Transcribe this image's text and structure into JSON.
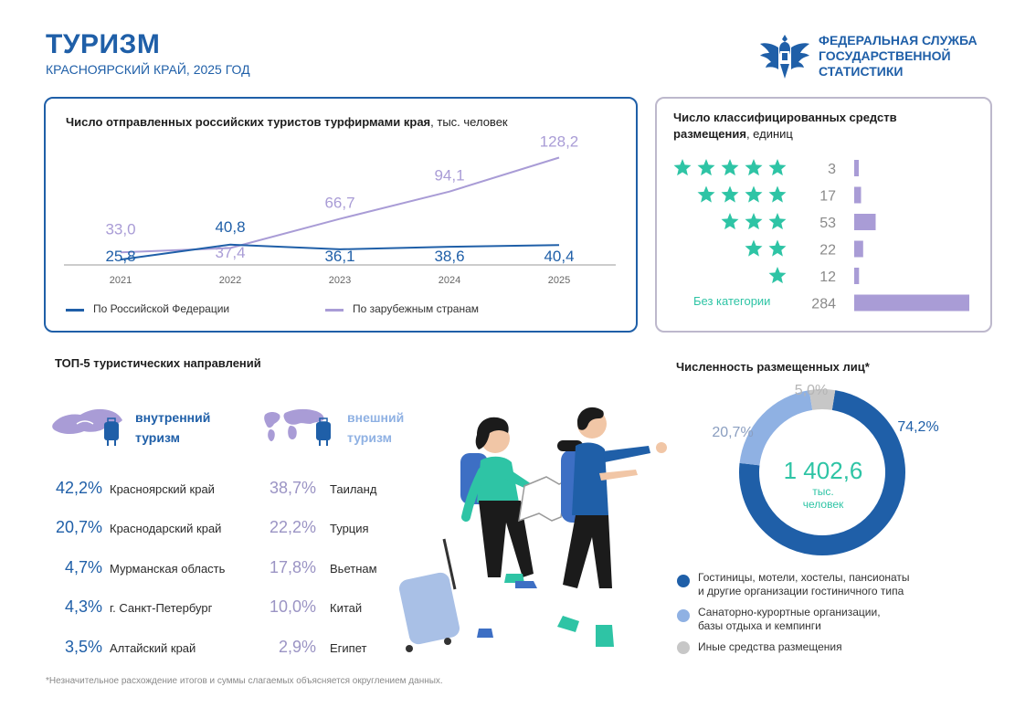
{
  "header": {
    "title": "ТУРИЗМ",
    "subtitle": "КРАСНОЯРСКИЙ КРАЙ, 2025 ГОД",
    "org_line1": "ФЕДЕРАЛЬНАЯ СЛУЖБА",
    "org_line2": "ГОСУДАРСТВЕННОЙ",
    "org_line3": "СТАТИСТИКИ"
  },
  "line_panel": {
    "title_bold": "Число отправленных российских туристов турфирмами края",
    "title_unit": ", тыс. человек",
    "legend_rf": "По Российской Федерации",
    "legend_foreign": "По зарубежным странам"
  },
  "stars_panel": {
    "title_bold1": "Число классифицированных средств",
    "title_bold2": "размещения",
    "title_unit": ", единиц",
    "no_category": "Без категории"
  },
  "top5": {
    "title": "ТОП-5 туристических направлений",
    "domestic_label1": "внутренний",
    "domestic_label2": "туризм",
    "foreign_label1": "внешний",
    "foreign_label2": "туризм",
    "domestic": [
      {
        "pct": "42,2%",
        "name": "Красноярский край"
      },
      {
        "pct": "20,7%",
        "name": "Краснодарский край"
      },
      {
        "pct": "4,7%",
        "name": "Мурманская область"
      },
      {
        "pct": "4,3%",
        "name": "г. Санкт-Петербург"
      },
      {
        "pct": "3,5%",
        "name": "Алтайский край"
      }
    ],
    "foreign": [
      {
        "pct": "38,7%",
        "name": "Таиланд"
      },
      {
        "pct": "22,2%",
        "name": "Турция"
      },
      {
        "pct": "17,8%",
        "name": "Вьетнам"
      },
      {
        "pct": "10,0%",
        "name": "Китай"
      },
      {
        "pct": "2,9%",
        "name": "Египет"
      }
    ]
  },
  "donut_panel": {
    "title": "Численность размещенных лиц*",
    "center_value": "1 402,6",
    "center_unit1": "тыс.",
    "center_unit2": "человек",
    "legend1_line1": "Гостиницы, мотели, хостелы, пансионаты",
    "legend1_line2": "и другие организации гостиничного типа",
    "legend2_line1": "Санаторно-курортные организации,",
    "legend2_line2": "базы отдыха и кемпинги",
    "legend3": "Иные средства размещения"
  },
  "footnote": "*Незначительное расхождение итогов и суммы слагаемых объясняется округлением данных.",
  "colors": {
    "dark_blue": "#1f5fa8",
    "lavender": "#a99cd6",
    "teal": "#2ec4a5",
    "light_blue": "#8fb1e3",
    "grey": "#c7c7c7"
  },
  "chart_data": [
    {
      "type": "line",
      "title": "Число отправленных российских туристов турфирмами края, тыс. человек",
      "x": [
        "2021",
        "2022",
        "2023",
        "2024",
        "2025"
      ],
      "series": [
        {
          "name": "По Российской Федерации",
          "values": [
            25.8,
            40.8,
            36.1,
            38.6,
            40.4
          ],
          "labels": [
            "25,8",
            "40,8",
            "36,1",
            "38,6",
            "40,4"
          ],
          "color": "#1f5fa8"
        },
        {
          "name": "По зарубежным странам",
          "values": [
            33.0,
            37.4,
            66.7,
            94.1,
            128.2
          ],
          "labels": [
            "33,0",
            "37,4",
            "66,7",
            "94,1",
            "128,2"
          ],
          "color": "#a99cd6"
        }
      ],
      "legend": "bottom",
      "grid": false
    },
    {
      "type": "bar",
      "title": "Число классифицированных средств размещения, единиц",
      "categories": [
        "5 stars",
        "4 stars",
        "3 stars",
        "2 stars",
        "1 star",
        "Без категории"
      ],
      "stars": [
        5,
        4,
        3,
        2,
        1,
        0
      ],
      "values": [
        3,
        17,
        53,
        22,
        12,
        284
      ],
      "labels": [
        "3",
        "17",
        "53",
        "22",
        "12",
        "284"
      ],
      "orientation": "horizontal"
    },
    {
      "type": "pie",
      "title": "Численность размещенных лиц*",
      "categories": [
        "Гостиницы, мотели, хостелы, пансионаты и другие организации гостиничного типа",
        "Санаторно-курортные организации, базы отдыха и кемпинги",
        "Иные средства размещения"
      ],
      "values": [
        74.2,
        20.7,
        5.0
      ],
      "labels": [
        "74,2%",
        "20,7%",
        "5,0%"
      ],
      "colors": [
        "#1f5fa8",
        "#8fb1e3",
        "#c7c7c7"
      ],
      "total": "1 402,6"
    }
  ]
}
